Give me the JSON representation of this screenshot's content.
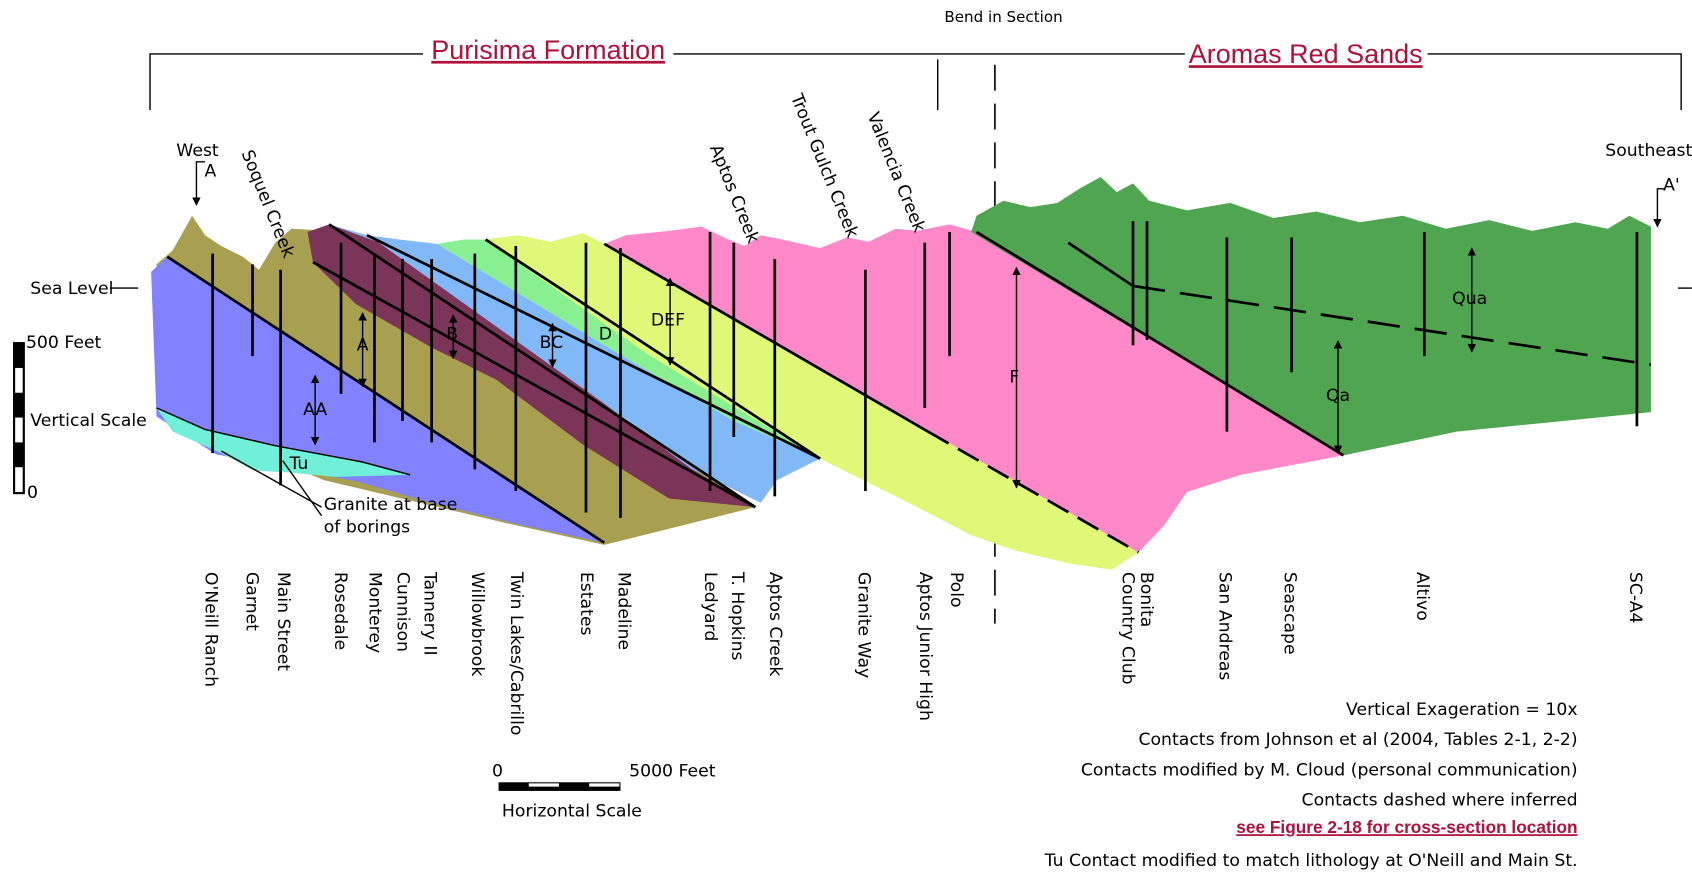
{
  "header": {
    "bend": "Bend in Section",
    "formations": [
      "Purisima Formation",
      "Aromas Red Sands"
    ]
  },
  "ends": {
    "west": "West",
    "west_mark": "A",
    "east": "Southeast",
    "east_mark": "A'"
  },
  "vertical_scale": {
    "sea_level": "Sea Level",
    "top": "500 Feet",
    "label": "Vertical Scale",
    "bottom": "0"
  },
  "creeks": [
    "Soquel Creek",
    "Aptos Creek",
    "Trout Gulch Creek",
    "Valencia Creek"
  ],
  "units": [
    "AA",
    "A",
    "B",
    "BC",
    "D",
    "DEF",
    "F",
    "Qua",
    "Qa",
    "Tu"
  ],
  "granite_note": [
    "Granite at base",
    "of borings"
  ],
  "wells": [
    "O'Neill Ranch",
    "Garnet",
    "Main Street",
    "Rosedale",
    "Monterey",
    "Cunnison",
    "Tannery II",
    "Willowbrook",
    "Twin Lakes/Cabrillo",
    "Estates",
    "Madeline",
    "Ledyard",
    "T. Hopkins",
    "Aptos Creek",
    "Granite Way",
    "Aptos Junior High",
    "Polo",
    "Country Club",
    "Bonita",
    "San Andreas",
    "Seascape",
    "Altivo",
    "SC-A4"
  ],
  "horizontal_scale": {
    "start": "0",
    "end": "5000 Feet",
    "label": "Horizontal Scale"
  },
  "notes": [
    "Vertical Exageration = 10x",
    "Contacts from Johnson et al (2004, Tables 2-1, 2-2)",
    "Contacts modified by M. Cloud (personal communication)",
    "Contacts dashed where inferred",
    "see Figure 2-18 for cross-section location",
    "Tu Contact modified to match lithology at O'Neill and Main St."
  ]
}
